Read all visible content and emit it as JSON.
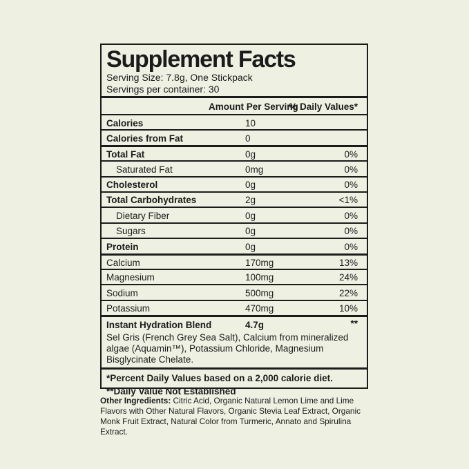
{
  "label": {
    "title": "Supplement Facts",
    "serving_size": "Serving Size: 7.8g, One Stickpack",
    "servings_per_container": "Servings per container: 30",
    "columns": {
      "amount": "Amount Per Serving",
      "dv": "% Daily Values*"
    },
    "rows": [
      {
        "name": "Calories",
        "amount": "10",
        "dv": "",
        "bold": true,
        "indent": false,
        "major": false
      },
      {
        "name": "Calories from Fat",
        "amount": "0",
        "dv": "",
        "bold": true,
        "indent": false,
        "major": false
      },
      {
        "name": "Total Fat",
        "amount": "0g",
        "dv": "0%",
        "bold": true,
        "indent": false,
        "major": true
      },
      {
        "name": "Saturated Fat",
        "amount": "0mg",
        "dv": "0%",
        "bold": false,
        "indent": true,
        "major": false
      },
      {
        "name": "Cholesterol",
        "amount": "0g",
        "dv": "0%",
        "bold": true,
        "indent": false,
        "major": false
      },
      {
        "name": "Total Carbohydrates",
        "amount": "2g",
        "dv": "<1%",
        "bold": true,
        "indent": false,
        "major": false
      },
      {
        "name": "Dietary Fiber",
        "amount": "0g",
        "dv": "0%",
        "bold": false,
        "indent": true,
        "major": false
      },
      {
        "name": "Sugars",
        "amount": "0g",
        "dv": "0%",
        "bold": false,
        "indent": true,
        "major": false
      },
      {
        "name": "Protein",
        "amount": "0g",
        "dv": "0%",
        "bold": true,
        "indent": false,
        "major": false
      },
      {
        "name": "Calcium",
        "amount": "170mg",
        "dv": "13%",
        "bold": false,
        "indent": false,
        "major": true
      },
      {
        "name": "Magnesium",
        "amount": "100mg",
        "dv": "24%",
        "bold": false,
        "indent": false,
        "major": false
      },
      {
        "name": "Sodium",
        "amount": "500mg",
        "dv": "22%",
        "bold": false,
        "indent": false,
        "major": false
      },
      {
        "name": "Potassium",
        "amount": "470mg",
        "dv": "10%",
        "bold": false,
        "indent": false,
        "major": false
      }
    ],
    "blend": {
      "name": "Instant Hydration Blend",
      "amount": "4.7g",
      "dv": "**",
      "description": "Sel Gris (French Grey Sea Salt), Calcium from mineralized algae (Aquamin™), Potassium Chloride, Magnesium Bisglycinate Chelate."
    },
    "footnotes": [
      "*Percent Daily Values based on a 2,000 calorie diet.",
      "**Daily Value Not Established"
    ],
    "other_ingredients_label": "Other Ingredients:",
    "other_ingredients_text": " Citric Acid, Organic Natural Lemon Lime and Lime Flavors with Other Natural Flavors, Organic Stevia Leaf Extract, Organic Monk Fruit Extract, Natural Color from Turmeric, Annato and Spirulina Extract."
  },
  "colors": {
    "background": "#eef0e2",
    "text": "#1b1b1b",
    "border": "#1b1b1b"
  }
}
